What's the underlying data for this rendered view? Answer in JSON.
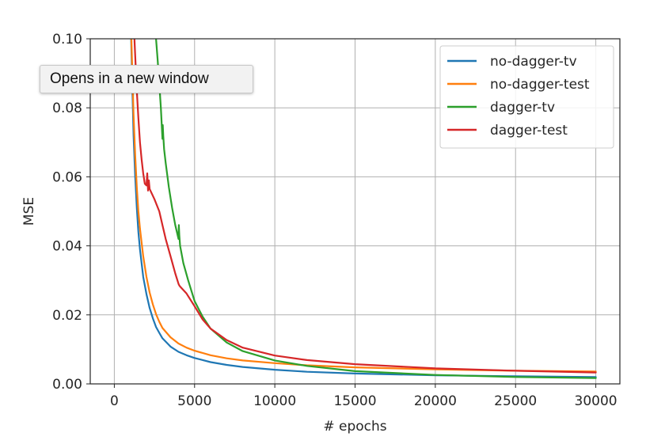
{
  "tooltip": {
    "text": "Opens in a new window"
  },
  "chart_data": {
    "type": "line",
    "title": "",
    "xlabel": "# epochs",
    "ylabel": "MSE",
    "xlim": [
      -1500,
      31500
    ],
    "ylim": [
      0,
      0.1
    ],
    "xticks": [
      0,
      5000,
      10000,
      15000,
      20000,
      25000,
      30000
    ],
    "xtick_labels": [
      "0",
      "5000",
      "10000",
      "15000",
      "20000",
      "25000",
      "30000"
    ],
    "yticks": [
      0,
      0.02,
      0.04,
      0.06,
      0.08,
      0.1
    ],
    "ytick_labels": [
      "0.00",
      "0.02",
      "0.04",
      "0.06",
      "0.08",
      "0.10"
    ],
    "grid": true,
    "legend_position": "top-right",
    "series": [
      {
        "name": "no-dagger-tv",
        "color": "#1f77b4",
        "x": [
          1000,
          1100,
          1200,
          1300,
          1400,
          1500,
          1600,
          1800,
          2000,
          2200,
          2400,
          2600,
          2800,
          3000,
          3500,
          4000,
          4500,
          5000,
          6000,
          7000,
          8000,
          10000,
          12000,
          15000,
          20000,
          25000,
          30000
        ],
        "y": [
          0.11,
          0.09,
          0.072,
          0.06,
          0.051,
          0.044,
          0.039,
          0.031,
          0.026,
          0.022,
          0.019,
          0.0165,
          0.0148,
          0.0132,
          0.0108,
          0.0093,
          0.0083,
          0.0075,
          0.0063,
          0.0055,
          0.0049,
          0.0041,
          0.0035,
          0.003,
          0.0025,
          0.0022,
          0.002
        ]
      },
      {
        "name": "no-dagger-test",
        "color": "#ff7f0e",
        "x": [
          1000,
          1100,
          1200,
          1300,
          1400,
          1500,
          1600,
          1800,
          2000,
          2200,
          2400,
          2600,
          2800,
          3000,
          3500,
          4000,
          4500,
          5000,
          6000,
          7000,
          8000,
          10000,
          12000,
          15000,
          20000,
          25000,
          30000
        ],
        "y": [
          0.11,
          0.094,
          0.078,
          0.066,
          0.057,
          0.05,
          0.045,
          0.037,
          0.031,
          0.0265,
          0.023,
          0.0202,
          0.018,
          0.0162,
          0.0135,
          0.0117,
          0.0105,
          0.0096,
          0.0083,
          0.0074,
          0.0068,
          0.006,
          0.0054,
          0.0048,
          0.0042,
          0.0038,
          0.0036
        ]
      },
      {
        "name": "dagger-tv",
        "color": "#2ca02c",
        "x": [
          2600,
          2700,
          2800,
          2900,
          3000,
          3020,
          3050,
          3100,
          3200,
          3400,
          3600,
          3800,
          4000,
          4020,
          4050,
          4100,
          4300,
          4600,
          5000,
          5500,
          6000,
          7000,
          8000,
          10000,
          12000,
          15000,
          20000,
          25000,
          30000
        ],
        "y": [
          0.1,
          0.094,
          0.087,
          0.08,
          0.071,
          0.075,
          0.072,
          0.068,
          0.064,
          0.057,
          0.051,
          0.046,
          0.042,
          0.046,
          0.043,
          0.04,
          0.035,
          0.03,
          0.024,
          0.0195,
          0.016,
          0.012,
          0.0095,
          0.0068,
          0.0052,
          0.0037,
          0.0026,
          0.002,
          0.0017
        ]
      },
      {
        "name": "dagger-test",
        "color": "#d62728",
        "x": [
          1250,
          1300,
          1400,
          1500,
          1600,
          1700,
          1800,
          1900,
          2000,
          2050,
          2100,
          2150,
          2200,
          2500,
          2800,
          3000,
          3200,
          3500,
          3800,
          4000,
          4050,
          4100,
          4500,
          5000,
          5500,
          6000,
          7000,
          8000,
          10000,
          12000,
          15000,
          20000,
          25000,
          30000
        ],
        "y": [
          0.1,
          0.095,
          0.085,
          0.077,
          0.07,
          0.065,
          0.061,
          0.058,
          0.0575,
          0.061,
          0.056,
          0.059,
          0.0565,
          0.0535,
          0.05,
          0.046,
          0.042,
          0.037,
          0.032,
          0.029,
          0.0285,
          0.0282,
          0.0262,
          0.0225,
          0.0187,
          0.016,
          0.0127,
          0.0105,
          0.0082,
          0.0069,
          0.0057,
          0.0045,
          0.0038,
          0.0033
        ]
      }
    ]
  }
}
